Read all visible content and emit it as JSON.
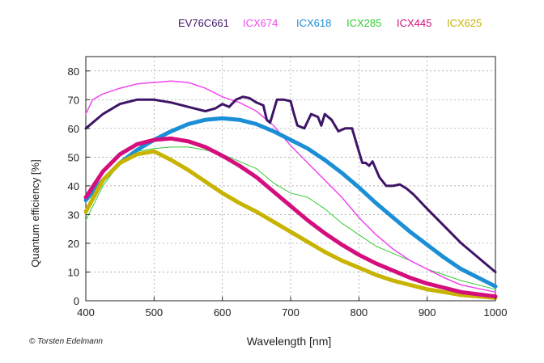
{
  "credit": "© Torsten Edelmann",
  "chart_data": {
    "type": "line",
    "xlabel": "Wavelength [nm]",
    "ylabel": "Quantum efficiency [%]",
    "xlim": [
      400,
      1000
    ],
    "ylim": [
      0,
      85
    ],
    "xticks": [
      400,
      500,
      600,
      700,
      800,
      900,
      1000
    ],
    "yticks": [
      0,
      10,
      20,
      30,
      40,
      50,
      60,
      70,
      80
    ],
    "grid": "dashed",
    "legend": "top",
    "series": [
      {
        "name": "EV76C661",
        "color": "#3f1466",
        "width": 3,
        "x": [
          400,
          425,
          450,
          475,
          500,
          525,
          550,
          575,
          590,
          600,
          610,
          620,
          630,
          640,
          650,
          660,
          665,
          670,
          680,
          690,
          700,
          705,
          710,
          720,
          730,
          740,
          745,
          750,
          760,
          770,
          780,
          790,
          800,
          805,
          810,
          815,
          820,
          830,
          840,
          850,
          860,
          870,
          880,
          900,
          950,
          1000
        ],
        "y": [
          60,
          65,
          68.5,
          70,
          70,
          69,
          67.5,
          66,
          67,
          68.5,
          67.5,
          70,
          71,
          70.5,
          69,
          68,
          63,
          62,
          70,
          70,
          69.5,
          65,
          61,
          60,
          65,
          64,
          61,
          65,
          63,
          59,
          60,
          60,
          52,
          48,
          48,
          47,
          48.5,
          43,
          40,
          40,
          40.5,
          39,
          37,
          32,
          20,
          10
        ]
      },
      {
        "name": "ICX674",
        "color": "#f046ee",
        "width": 1.5,
        "x": [
          400,
          410,
          425,
          450,
          475,
          500,
          525,
          550,
          575,
          600,
          625,
          650,
          675,
          700,
          725,
          750,
          775,
          800,
          825,
          850,
          875,
          900,
          925,
          950,
          1000
        ],
        "y": [
          65,
          70,
          72,
          74,
          75.5,
          76,
          76.5,
          76,
          74,
          71,
          69,
          66,
          61,
          54,
          48,
          42,
          36,
          29,
          23,
          18,
          14,
          11,
          8,
          5.5,
          3
        ]
      },
      {
        "name": "ICX618",
        "color": "#1b8fd6",
        "width": 5,
        "x": [
          400,
          425,
          450,
          475,
          500,
          525,
          550,
          575,
          600,
          625,
          650,
          675,
          700,
          725,
          750,
          775,
          800,
          825,
          850,
          875,
          900,
          925,
          950,
          1000
        ],
        "y": [
          35,
          42,
          48,
          52.5,
          56,
          59,
          61.5,
          63,
          63.5,
          63,
          61.5,
          59,
          56,
          53,
          49,
          44.5,
          39.5,
          34,
          29,
          24,
          19.5,
          15,
          11,
          5
        ]
      },
      {
        "name": "ICX285",
        "color": "#33cc33",
        "width": 1,
        "x": [
          400,
          425,
          450,
          475,
          500,
          525,
          550,
          575,
          600,
          625,
          650,
          675,
          700,
          725,
          750,
          775,
          800,
          825,
          850,
          875,
          900,
          925,
          950,
          1000
        ],
        "y": [
          28,
          40,
          48,
          52,
          53,
          53.5,
          53.5,
          52.5,
          51,
          48.5,
          46,
          41,
          37.5,
          36,
          32,
          27,
          23,
          19,
          16.5,
          14,
          11,
          9,
          7,
          4
        ]
      },
      {
        "name": "ICX445",
        "color": "#d40f7d",
        "width": 5,
        "x": [
          400,
          425,
          450,
          475,
          500,
          525,
          550,
          575,
          600,
          625,
          650,
          675,
          700,
          725,
          750,
          775,
          800,
          825,
          850,
          875,
          900,
          925,
          950,
          1000
        ],
        "y": [
          36,
          45,
          51,
          54.5,
          56,
          56.5,
          55.5,
          53.5,
          50.5,
          47,
          43,
          38,
          33,
          28,
          23.5,
          19.5,
          16,
          13,
          10.5,
          8,
          6,
          4.5,
          3,
          1.5
        ]
      },
      {
        "name": "ICX625",
        "color": "#c8b400",
        "width": 5,
        "x": [
          400,
          425,
          450,
          475,
          500,
          525,
          550,
          575,
          600,
          625,
          650,
          675,
          700,
          725,
          750,
          775,
          800,
          825,
          850,
          875,
          900,
          925,
          950,
          1000
        ],
        "y": [
          31,
          42,
          48,
          51,
          52,
          49,
          45.5,
          41.5,
          37.5,
          34,
          31,
          27.5,
          24,
          20.5,
          17,
          14,
          11.5,
          9,
          7,
          5.5,
          4,
          3,
          2,
          1
        ]
      }
    ]
  }
}
